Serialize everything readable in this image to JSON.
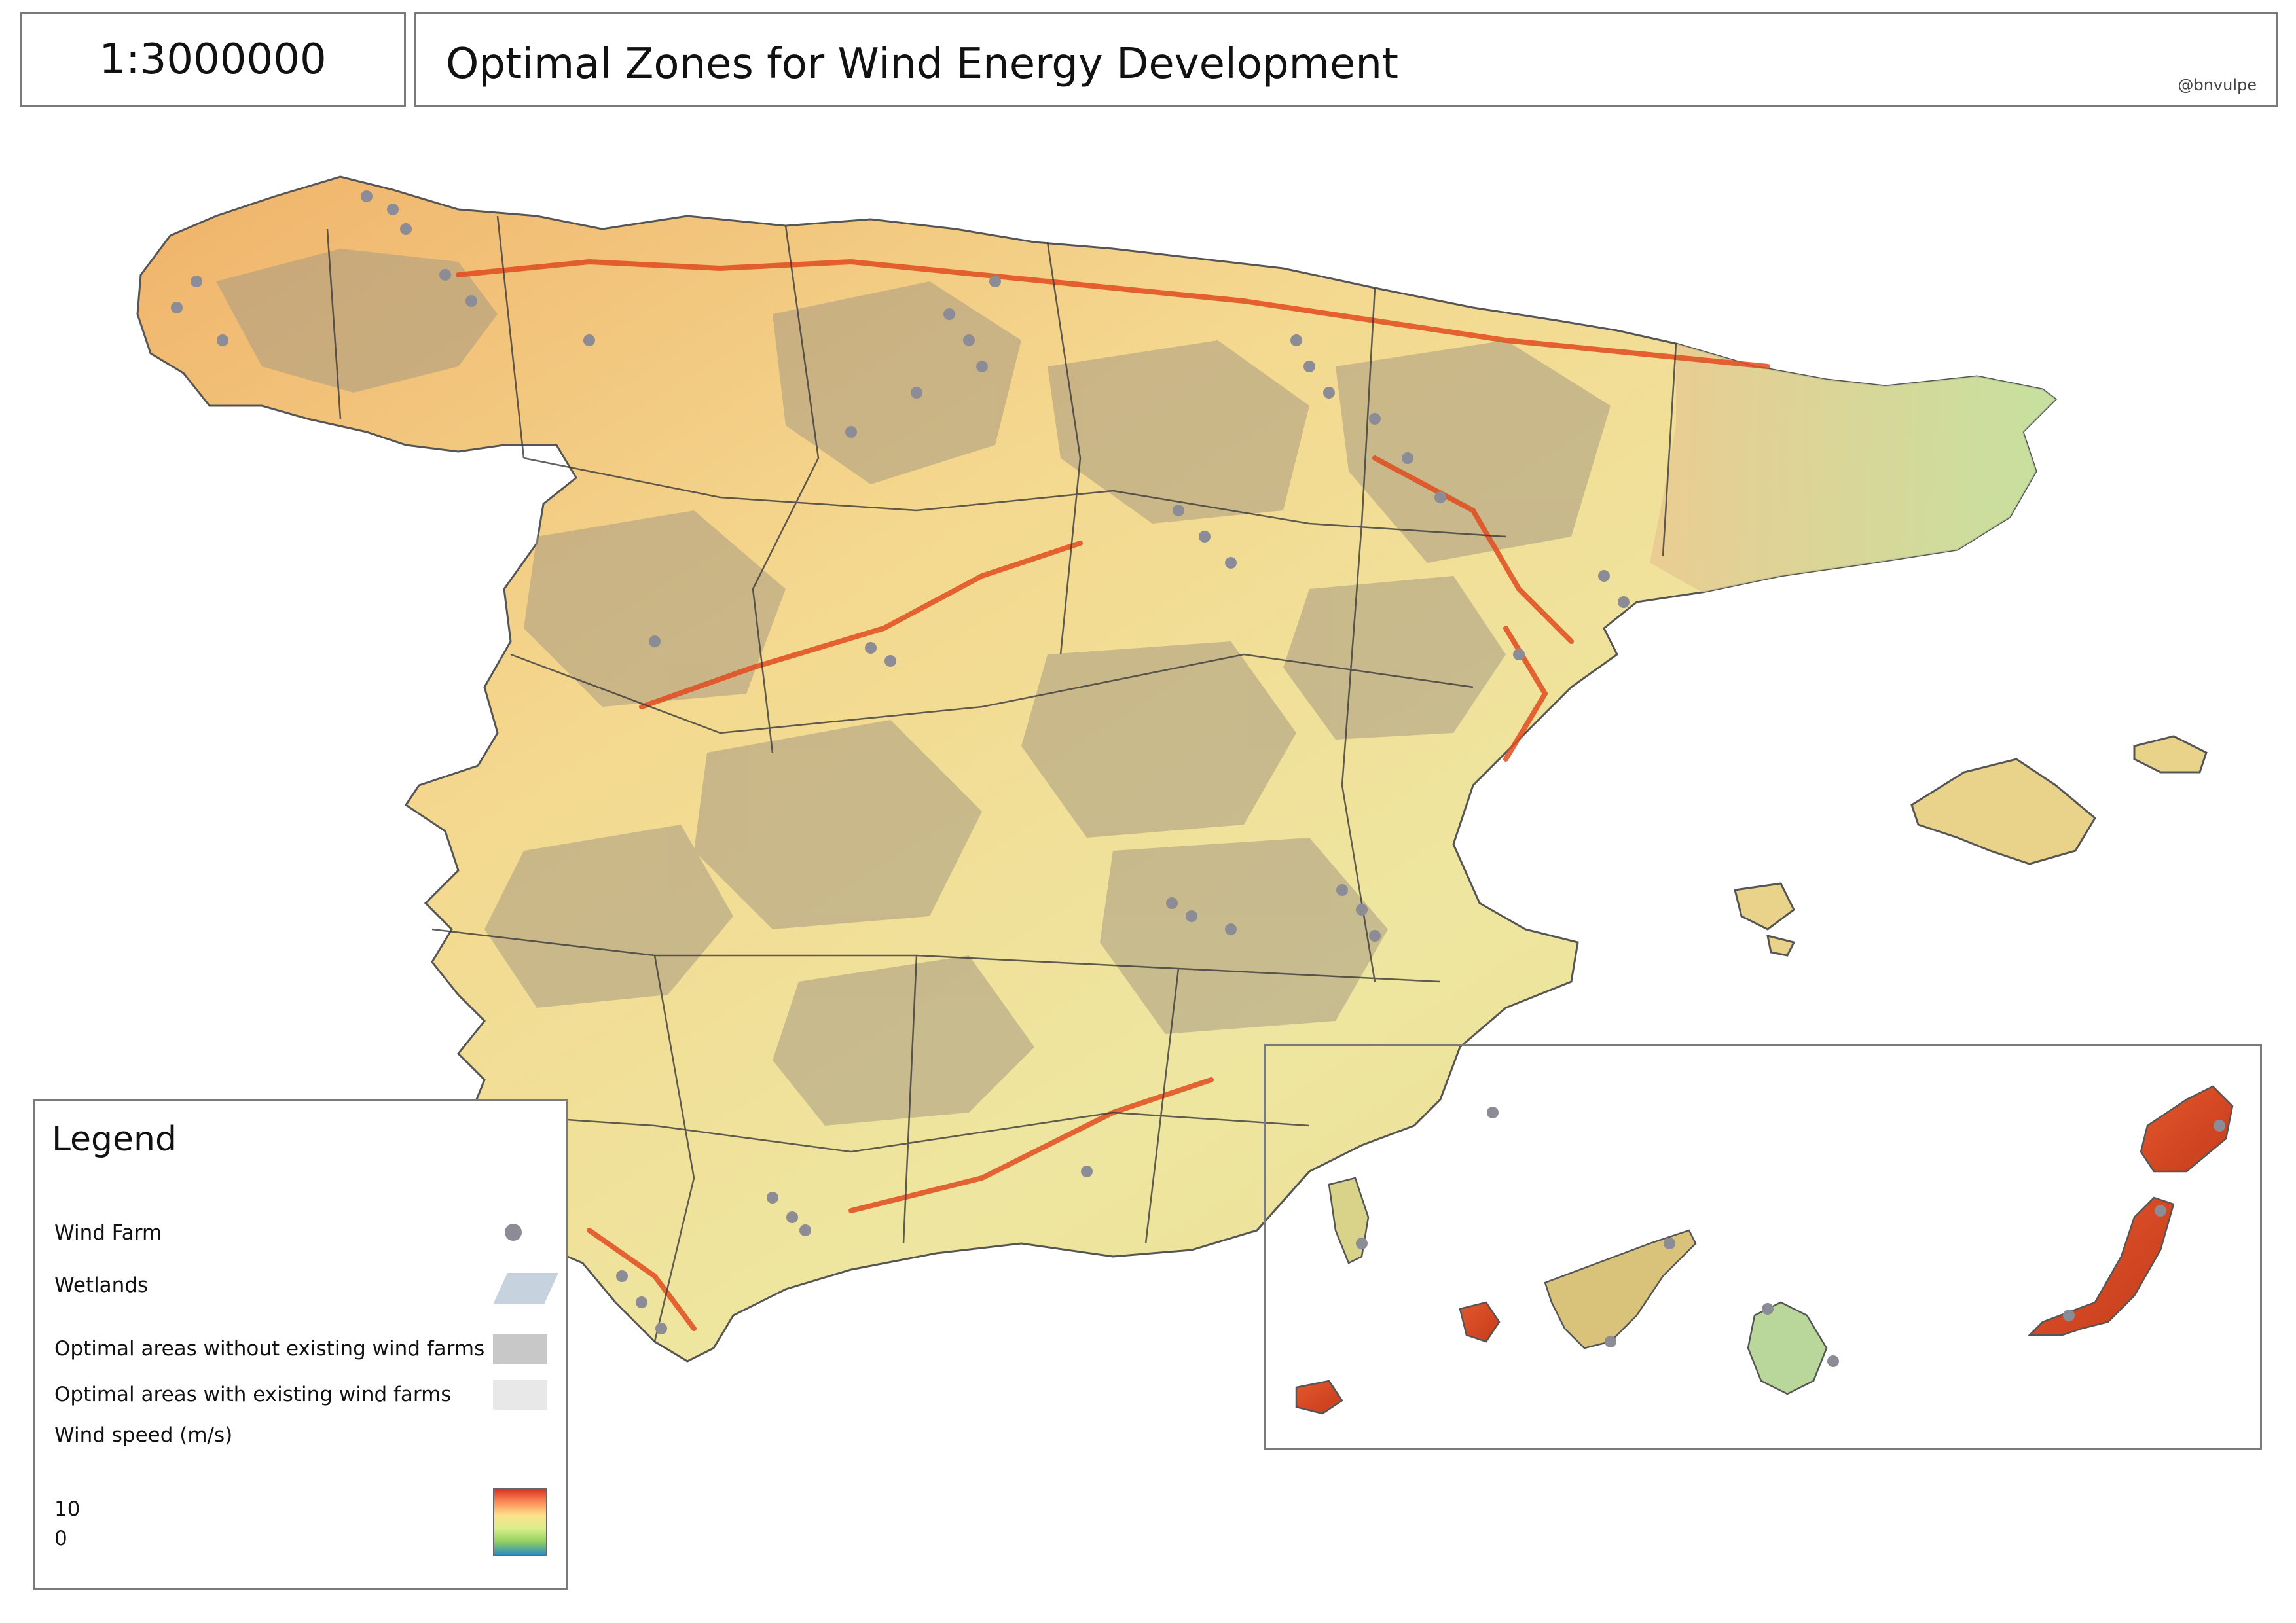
{
  "header": {
    "scale": "1:3000000",
    "title": "Optimal Zones for Wind Energy Development",
    "credit": "@bnvulpe"
  },
  "legend": {
    "title": "Legend",
    "items": [
      {
        "id": "wind-farm",
        "label": "Wind Farm",
        "color": "#8c8c96"
      },
      {
        "id": "wetlands",
        "label": "Wetlands",
        "color": "#c6d3df"
      },
      {
        "id": "optimal-without",
        "label": "Optimal areas without existing wind farms",
        "color": "#c8c8c8"
      },
      {
        "id": "optimal-with",
        "label": "Optimal areas with existing wind farms",
        "color": "#e8e8e8"
      }
    ],
    "wind_speed": {
      "label": "Wind speed (m/s)",
      "max_label": "10",
      "min_label": "0",
      "ramp_colors": [
        "#d7301f",
        "#fc8d59",
        "#fee08b",
        "#d9ef8b",
        "#91cf60",
        "#2b8cbe"
      ]
    }
  },
  "map": {
    "land_color": "#f3e9a0",
    "optimal_overlay_color": "#a89a82",
    "border_color": "#3a3a3a",
    "high_wind_color": "#e04b1f"
  }
}
